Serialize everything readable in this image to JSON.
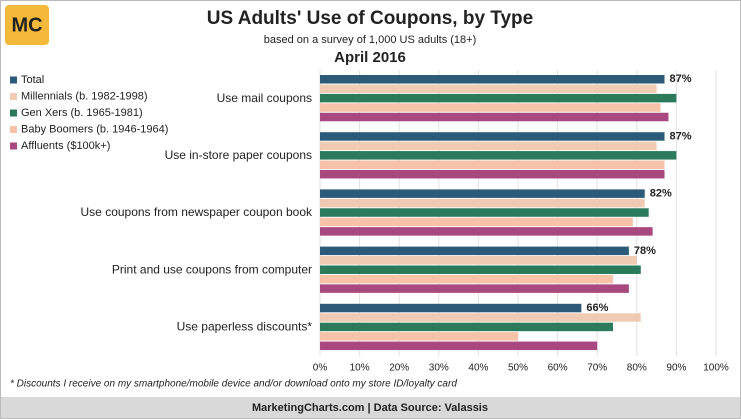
{
  "logo": "MC",
  "chart_data": {
    "type": "hbar",
    "title": "US Adults' Use of Coupons, by Type",
    "subtitle": "based on a survey of 1,000 US adults (18+)",
    "date_label": "April 2016",
    "footnote": "* Discounts I receive on my smartphone/mobile device and/or download onto my store ID/loyalty card",
    "source": "MarketingCharts.com | Data Source: Valassis",
    "categories": [
      "Use mail coupons",
      "Use in-store paper coupons",
      "Use coupons from newspaper coupon book",
      "Print and use coupons from computer",
      "Use paperless discounts*"
    ],
    "series": [
      {
        "name": "Total",
        "color": "#2b5b78",
        "values": [
          87,
          87,
          82,
          78,
          66
        ],
        "value_labels": [
          "87%",
          "87%",
          "82%",
          "78%",
          "66%"
        ]
      },
      {
        "name": "Millennials (b. 1982-1998)",
        "color": "#efcbb3",
        "values": [
          85,
          85,
          82,
          80,
          81
        ]
      },
      {
        "name": "Gen Xers (b. 1965-1981)",
        "color": "#2b7a5c",
        "values": [
          90,
          90,
          83,
          81,
          74
        ]
      },
      {
        "name": "Baby Boomers (b. 1946-1964)",
        "color": "#f6c3a9",
        "values": [
          86,
          87,
          79,
          74,
          50
        ]
      },
      {
        "name": "Affluents ($100k+)",
        "color": "#a9487f",
        "values": [
          88,
          87,
          84,
          78,
          70
        ]
      }
    ],
    "xlim": [
      0,
      100
    ],
    "xticks": [
      {
        "value": 0,
        "label": "0%"
      },
      {
        "value": 10,
        "label": "10%"
      },
      {
        "value": 20,
        "label": "20%"
      },
      {
        "value": 30,
        "label": "30%"
      },
      {
        "value": 40,
        "label": "40%"
      },
      {
        "value": 50,
        "label": "50%"
      },
      {
        "value": 60,
        "label": "60%"
      },
      {
        "value": 70,
        "label": "70%"
      },
      {
        "value": 80,
        "label": "80%"
      },
      {
        "value": 90,
        "label": "90%"
      },
      {
        "value": 100,
        "label": "100%"
      }
    ],
    "grid": true,
    "legend": "top-left"
  }
}
